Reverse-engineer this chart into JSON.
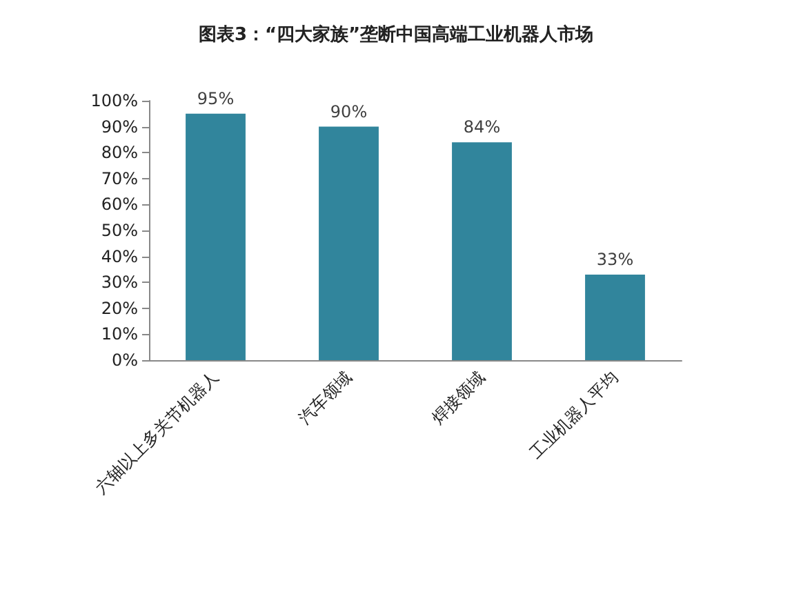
{
  "chart_data": {
    "type": "bar",
    "title": "图表3：“四大家族”垄断中国高端工业机器人市场",
    "categories": [
      "六轴以上多关节机器人",
      "汽车领域",
      "焊接领域",
      "工业机器人平均"
    ],
    "values": [
      95,
      90,
      84,
      33
    ],
    "value_labels": [
      "95%",
      "90%",
      "84%",
      "33%"
    ],
    "color": "#31859c",
    "ylim": [
      0,
      100
    ],
    "yticks": [
      {
        "value": 0,
        "label": "0%"
      },
      {
        "value": 10,
        "label": "10%"
      },
      {
        "value": 20,
        "label": "20%"
      },
      {
        "value": 30,
        "label": "30%"
      },
      {
        "value": 40,
        "label": "40%"
      },
      {
        "value": 50,
        "label": "50%"
      },
      {
        "value": 60,
        "label": "60%"
      },
      {
        "value": 70,
        "label": "70%"
      },
      {
        "value": 80,
        "label": "80%"
      },
      {
        "value": 90,
        "label": "90%"
      },
      {
        "value": 100,
        "label": "100%"
      }
    ],
    "grid": false
  }
}
